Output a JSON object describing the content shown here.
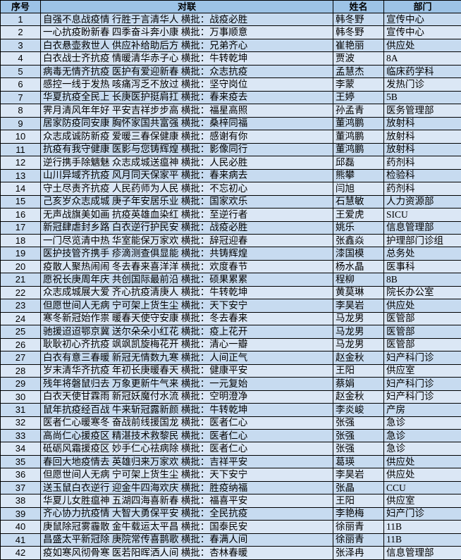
{
  "table": {
    "columns": [
      "序号",
      "对联",
      "姓名",
      "部门"
    ],
    "rows": [
      {
        "no": "1",
        "couplet": "自强不息战疫情 行胜于言清华人 横批：战疫必胜",
        "name": "韩冬野",
        "dept": "宣传中心"
      },
      {
        "no": "2",
        "couplet": "一心抗疫盼新春 四季奋斗奔小康 横批：万事顺意",
        "name": "韩冬野",
        "dept": "宣传中心"
      },
      {
        "no": "3",
        "couplet": "白衣悬壶救世人 供应补给助后方 横批：兄弟齐心",
        "name": "崔艳丽",
        "dept": "供应处"
      },
      {
        "no": "4",
        "couplet": "白衣战士齐抗疫 情暖清华赤子心 横批：牛转乾坤",
        "name": "贾波",
        "dept": "8A"
      },
      {
        "no": "5",
        "couplet": "病毒无情齐抗疫 医护有爱迎新春 横批：众志抗疫",
        "name": "孟慧杰",
        "dept": "临床药学科"
      },
      {
        "no": "6",
        "couplet": "感控一线于发热 咳痛泻乏不放过 横批：坚守岗位",
        "name": "李蒙",
        "dept": "发热门诊"
      },
      {
        "no": "7",
        "couplet": "华夏抗疫全民上 长庚医护挺肩扛 横批：春来疫去",
        "name": "王婷",
        "dept": "5B"
      },
      {
        "no": "8",
        "couplet": "霁月清风年年好 平安吉祥步步高 横批：福星高照",
        "name": "孙孟青",
        "dept": "医务管理部"
      },
      {
        "no": "9",
        "couplet": "居家防疫同安康 胸怀家国共富强 横批：桑梓同福",
        "name": "董鸿鹏",
        "dept": "放射科"
      },
      {
        "no": "10",
        "couplet": "众志成诚防新疫 爱暖三春保健康 横批：感谢有你",
        "name": "董鸿鹏",
        "dept": "放射科"
      },
      {
        "no": "11",
        "couplet": "抗疫有我守健康 医影与您铸辉煌 横批：影像同行",
        "name": "董鸿鹏",
        "dept": "放射科"
      },
      {
        "no": "12",
        "couplet": "逆行携手除魑魅 众志成城送瘟神 横批：人民必胜",
        "name": "邱磊",
        "dept": "药剂科"
      },
      {
        "no": "13",
        "couplet": "山川异域齐抗疫 风月同天保家平 横批：春来病去",
        "name": "熊攀",
        "dept": "检验科"
      },
      {
        "no": "14",
        "couplet": "守土尽责齐抗疫 人民药师为人民 横批：不忘初心",
        "name": "闫旭",
        "dept": "药剂科"
      },
      {
        "no": "15",
        "couplet": "己亥岁众志成城 庚子年安居乐业 横批：国家欢乐",
        "name": "石慧敏",
        "dept": "人力资源部"
      },
      {
        "no": "16",
        "couplet": "无声战旗美如画 抗疫英雄血染红 横批：至逆行者",
        "name": "王爱虎",
        "dept": "SICU"
      },
      {
        "no": "17",
        "couplet": "新冠肆虐封乡路 白衣逆行护民安 横批：战疫必胜",
        "name": "姚乐",
        "dept": "信息管理部"
      },
      {
        "no": "18",
        "couplet": "一门尽览清中热 华室能保万家欢 横批：辞冠迎春",
        "name": "张鑫焱",
        "dept": "护理部门诊组"
      },
      {
        "no": "19",
        "couplet": "医护技管齐携手 疹滴测查俱显能 横批：共铸辉煌",
        "name": "漆国模",
        "dept": "总务处"
      },
      {
        "no": "20",
        "couplet": "疫散人聚热闹闹 冬去春来喜洋洋 横批：欢度春节",
        "name": "杨水晶",
        "dept": "医事科"
      },
      {
        "no": "21",
        "couplet": "愿祝长庚周年庆 共创国际最前沿 横批：硕果累累",
        "name": "程柳",
        "dept": "8B"
      },
      {
        "no": "22",
        "couplet": "众志成城展大爱 齐心抗疫清庚人 横批：牛转乾坤",
        "name": "黄莫琳",
        "dept": "院长办公室"
      },
      {
        "no": "23",
        "couplet": "但愿世间人无病 宁可架上货生尘 横批：天下安宁",
        "name": "李昊岩",
        "dept": "供应处"
      },
      {
        "no": "24",
        "couplet": "寒冬新冠始作祟 暖春天使守安康 横批：冬去春来",
        "name": "马龙男",
        "dept": "医管部"
      },
      {
        "no": "25",
        "couplet": "驰援迢迢鄂京冀 送尔朵朵小红花 横批：疫上花开",
        "name": "马龙男",
        "dept": "医管部"
      },
      {
        "no": "26",
        "couplet": "耿耿初心齐抗疫 飒飒凯旋梅花开 横批：清心一瓣",
        "name": "马龙男",
        "dept": "医管部"
      },
      {
        "no": "27",
        "couplet": "白衣有意三春暖 新冠无情数九寒 横批：人间正气",
        "name": "赵金秋",
        "dept": "妇产科门诊"
      },
      {
        "no": "28",
        "couplet": "岁末清华齐抗疫 年初长庚暖春天 横批：健康平安",
        "name": "王阳",
        "dept": "供应室"
      },
      {
        "no": "29",
        "couplet": "残年将磐鼠归去 万象更新牛气来 横批：一元复始",
        "name": "蔡娟",
        "dept": "妇产科门诊"
      },
      {
        "no": "30",
        "couplet": "白衣天使甘霖雨 新冠妖魔付水流 横批：空明澄净",
        "name": "赵金秋",
        "dept": "妇产科门诊"
      },
      {
        "no": "31",
        "couplet": "鼠年抗疫经百战 牛来斩冠露新颜 横批：牛转乾坤",
        "name": "李炎峻",
        "dept": "产房"
      },
      {
        "no": "32",
        "couplet": "医者仁心暖寒冬 奋战前线援国龙 横批：医者仁心",
        "name": "张强",
        "dept": "急诊"
      },
      {
        "no": "33",
        "couplet": "高尚仁心援疫区 精湛技术救黎民 横批：医者仁心",
        "name": "张强",
        "dept": "急诊"
      },
      {
        "no": "34",
        "couplet": "砥砺风霜援疫区 妙手仁心祛病除 横批：医者仁心",
        "name": "张强",
        "dept": "急诊"
      },
      {
        "no": "35",
        "couplet": "春回大地疫情去 英雄归来万家欢 横批：吉祥平安",
        "name": "葛瑛",
        "dept": "供应处"
      },
      {
        "no": "36",
        "couplet": "但愿世间人无病 宁可架上货生尘 横批：天下安宁",
        "name": "李昊岩",
        "dept": "供应处"
      },
      {
        "no": "37",
        "couplet": "送玉鼠白衣逆行  迎金牛四海欢庆 横批：胜疫纳福",
        "name": "张晶",
        "dept": "CCU"
      },
      {
        "no": "38",
        "couplet": "华夏儿女胜瘟神 五湖四海喜新春 横批：福喜平安",
        "name": "王阳",
        "dept": "供应室"
      },
      {
        "no": "39",
        "couplet": "齐心协力抗疫情 大智大勇保平安 横批：全民抗疫",
        "name": "李艳梅",
        "dept": "妇产门诊"
      },
      {
        "no": "40",
        "couplet": "庚鼠除冠雾霾散 金牛载运太平昌 横批：国泰民安",
        "name": "徐丽青",
        "dept": "11B"
      },
      {
        "no": "41",
        "couplet": "昌盛太平新冠除 庚院常传喜鹊歌 横批：春满人间",
        "name": "徐丽青",
        "dept": "11B"
      },
      {
        "no": "42",
        "couplet": "疫如寒风彻骨寒 医若阳晖洒人间 横批：杏林春暖",
        "name": "张泽冉",
        "dept": "信息管理部"
      }
    ]
  },
  "colors": {
    "header_bg": "#9dc3e6",
    "row_odd_bg": "#c7dbf0",
    "row_even_bg": "#dbe7f5",
    "border": "#000000",
    "text": "#000000"
  }
}
